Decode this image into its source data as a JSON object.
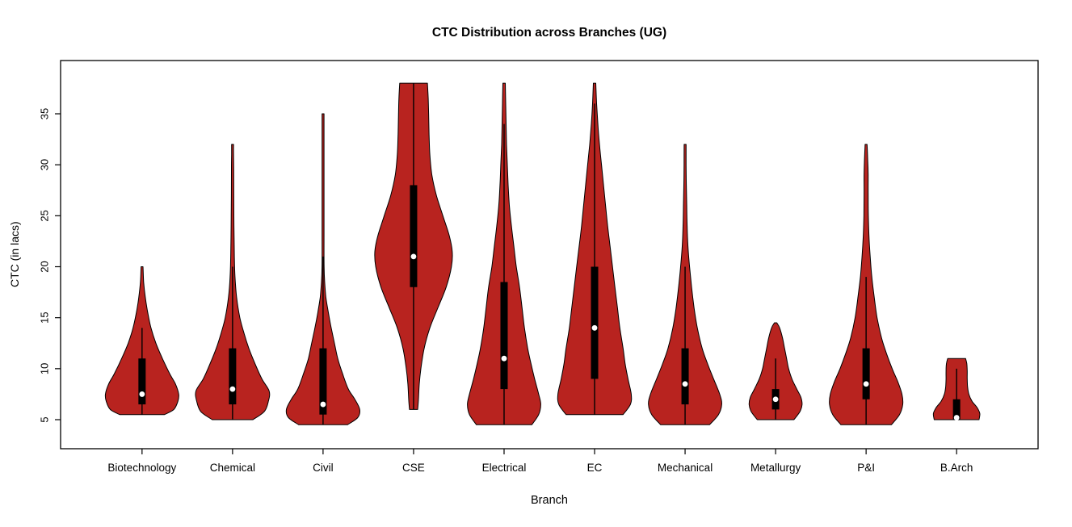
{
  "chart_data": {
    "type": "violin",
    "title": "CTC Distribution across Branches (UG)",
    "xlabel": "Branch",
    "ylabel": "CTC (in lacs)",
    "ylim": [
      2,
      40
    ],
    "yticks": [
      5,
      10,
      15,
      20,
      25,
      30,
      35
    ],
    "grid": false,
    "fill_color": "#B8231F",
    "outline_color": "#000000",
    "categories": [
      "Biotechnology",
      "Chemical",
      "Civil",
      "CSE",
      "Electrical",
      "EC",
      "Mechanical",
      "Metallurgy",
      "P&I",
      "B.Arch"
    ],
    "violins": [
      {
        "branch": "Biotechnology",
        "min": 5.5,
        "max": 20,
        "q1": 6.5,
        "q3": 11,
        "median": 7.5,
        "whisker_low": 5.5,
        "whisker_high": 14,
        "density": [
          [
            5.5,
            0.55
          ],
          [
            6.0,
            0.78
          ],
          [
            6.8,
            0.88
          ],
          [
            7.5,
            0.9
          ],
          [
            8.5,
            0.82
          ],
          [
            9.5,
            0.68
          ],
          [
            11.0,
            0.5
          ],
          [
            12.5,
            0.34
          ],
          [
            14.0,
            0.22
          ],
          [
            15.5,
            0.14
          ],
          [
            17.0,
            0.08
          ],
          [
            18.5,
            0.04
          ],
          [
            20.0,
            0.01
          ]
        ]
      },
      {
        "branch": "Chemical",
        "min": 5,
        "max": 32,
        "q1": 6.5,
        "q3": 12,
        "median": 8,
        "whisker_low": 5,
        "whisker_high": 20,
        "density": [
          [
            5.0,
            0.5
          ],
          [
            5.8,
            0.78
          ],
          [
            6.8,
            0.88
          ],
          [
            7.8,
            0.9
          ],
          [
            9.0,
            0.72
          ],
          [
            10.5,
            0.55
          ],
          [
            12.0,
            0.4
          ],
          [
            13.5,
            0.28
          ],
          [
            15.0,
            0.18
          ],
          [
            17.0,
            0.1
          ],
          [
            19.0,
            0.06
          ],
          [
            21.0,
            0.045
          ],
          [
            24.0,
            0.035
          ],
          [
            27.0,
            0.03
          ],
          [
            29.5,
            0.028
          ],
          [
            31.0,
            0.02
          ],
          [
            32.0,
            0.008
          ]
        ]
      },
      {
        "branch": "Civil",
        "min": 4.5,
        "max": 35,
        "q1": 5.5,
        "q3": 12,
        "median": 6.5,
        "whisker_low": 4.5,
        "whisker_high": 21,
        "density": [
          [
            4.5,
            0.6
          ],
          [
            5.2,
            0.85
          ],
          [
            6.0,
            0.9
          ],
          [
            7.0,
            0.78
          ],
          [
            8.0,
            0.62
          ],
          [
            9.5,
            0.48
          ],
          [
            11.0,
            0.36
          ],
          [
            12.5,
            0.28
          ],
          [
            14.0,
            0.2
          ],
          [
            15.5,
            0.13
          ],
          [
            17.0,
            0.07
          ],
          [
            18.5,
            0.04
          ],
          [
            20.0,
            0.025
          ],
          [
            23.0,
            0.018
          ],
          [
            26.0,
            0.015
          ],
          [
            29.0,
            0.015
          ],
          [
            32.0,
            0.012
          ],
          [
            35.0,
            0.006
          ]
        ]
      },
      {
        "branch": "CSE",
        "min": 6,
        "max": 38,
        "q1": 18,
        "q3": 28,
        "median": 21,
        "whisker_low": 6,
        "whisker_high": 38,
        "density": [
          [
            6.0,
            0.1
          ],
          [
            7.0,
            0.12
          ],
          [
            8.5,
            0.14
          ],
          [
            10.0,
            0.18
          ],
          [
            12.0,
            0.26
          ],
          [
            14.0,
            0.4
          ],
          [
            16.0,
            0.6
          ],
          [
            18.0,
            0.8
          ],
          [
            20.0,
            0.93
          ],
          [
            21.5,
            0.95
          ],
          [
            23.0,
            0.88
          ],
          [
            25.0,
            0.72
          ],
          [
            27.0,
            0.56
          ],
          [
            29.0,
            0.45
          ],
          [
            31.0,
            0.4
          ],
          [
            33.0,
            0.38
          ],
          [
            35.0,
            0.37
          ],
          [
            36.5,
            0.36
          ],
          [
            38.0,
            0.34
          ]
        ]
      },
      {
        "branch": "Electrical",
        "min": 4.5,
        "max": 38,
        "q1": 8,
        "q3": 18.5,
        "median": 11,
        "whisker_low": 4.5,
        "whisker_high": 34,
        "density": [
          [
            4.5,
            0.68
          ],
          [
            5.5,
            0.85
          ],
          [
            6.5,
            0.9
          ],
          [
            7.5,
            0.85
          ],
          [
            9.0,
            0.75
          ],
          [
            10.5,
            0.66
          ],
          [
            12.0,
            0.58
          ],
          [
            14.0,
            0.5
          ],
          [
            16.0,
            0.44
          ],
          [
            18.0,
            0.38
          ],
          [
            20.0,
            0.3
          ],
          [
            22.0,
            0.24
          ],
          [
            24.0,
            0.18
          ],
          [
            26.0,
            0.13
          ],
          [
            28.0,
            0.1
          ],
          [
            30.0,
            0.08
          ],
          [
            32.0,
            0.06
          ],
          [
            34.0,
            0.05
          ],
          [
            36.0,
            0.04
          ],
          [
            38.0,
            0.03
          ]
        ]
      },
      {
        "branch": "EC",
        "min": 5.5,
        "max": 38,
        "q1": 9,
        "q3": 20,
        "median": 14,
        "whisker_low": 5.5,
        "whisker_high": 36,
        "density": [
          [
            5.5,
            0.7
          ],
          [
            6.5,
            0.88
          ],
          [
            7.5,
            0.9
          ],
          [
            9.0,
            0.82
          ],
          [
            10.5,
            0.75
          ],
          [
            12.0,
            0.7
          ],
          [
            14.0,
            0.62
          ],
          [
            16.0,
            0.56
          ],
          [
            18.0,
            0.5
          ],
          [
            20.0,
            0.44
          ],
          [
            22.0,
            0.38
          ],
          [
            24.0,
            0.32
          ],
          [
            26.0,
            0.27
          ],
          [
            28.0,
            0.22
          ],
          [
            30.0,
            0.17
          ],
          [
            32.0,
            0.12
          ],
          [
            34.0,
            0.08
          ],
          [
            36.0,
            0.05
          ],
          [
            38.0,
            0.03
          ]
        ]
      },
      {
        "branch": "Mechanical",
        "min": 4.5,
        "max": 32,
        "q1": 6.5,
        "q3": 12,
        "median": 8.5,
        "whisker_low": 4.5,
        "whisker_high": 20,
        "density": [
          [
            4.5,
            0.6
          ],
          [
            5.5,
            0.82
          ],
          [
            6.5,
            0.9
          ],
          [
            7.5,
            0.85
          ],
          [
            9.0,
            0.7
          ],
          [
            10.5,
            0.55
          ],
          [
            12.0,
            0.42
          ],
          [
            14.0,
            0.3
          ],
          [
            16.0,
            0.22
          ],
          [
            18.0,
            0.16
          ],
          [
            20.0,
            0.11
          ],
          [
            22.0,
            0.07
          ],
          [
            24.0,
            0.05
          ],
          [
            26.0,
            0.04
          ],
          [
            28.0,
            0.03
          ],
          [
            30.0,
            0.025
          ],
          [
            32.0,
            0.01
          ]
        ]
      },
      {
        "branch": "Metallurgy",
        "min": 5,
        "max": 14.5,
        "q1": 6,
        "q3": 8,
        "median": 7,
        "whisker_low": 5,
        "whisker_high": 11,
        "density": [
          [
            5.0,
            0.45
          ],
          [
            5.8,
            0.6
          ],
          [
            6.5,
            0.65
          ],
          [
            7.2,
            0.62
          ],
          [
            8.0,
            0.52
          ],
          [
            9.0,
            0.4
          ],
          [
            10.0,
            0.32
          ],
          [
            11.0,
            0.27
          ],
          [
            12.0,
            0.22
          ],
          [
            13.0,
            0.17
          ],
          [
            14.0,
            0.1
          ],
          [
            14.5,
            0.03
          ]
        ]
      },
      {
        "branch": "P&I",
        "min": 4.5,
        "max": 32,
        "q1": 7,
        "q3": 12,
        "median": 8.5,
        "whisker_low": 4.5,
        "whisker_high": 19,
        "density": [
          [
            4.5,
            0.62
          ],
          [
            5.5,
            0.82
          ],
          [
            6.5,
            0.9
          ],
          [
            7.5,
            0.88
          ],
          [
            8.7,
            0.78
          ],
          [
            10.0,
            0.64
          ],
          [
            11.5,
            0.5
          ],
          [
            13.0,
            0.38
          ],
          [
            15.0,
            0.27
          ],
          [
            17.0,
            0.2
          ],
          [
            19.0,
            0.14
          ],
          [
            21.0,
            0.1
          ],
          [
            23.0,
            0.07
          ],
          [
            25.0,
            0.055
          ],
          [
            27.0,
            0.05
          ],
          [
            29.0,
            0.05
          ],
          [
            30.5,
            0.04
          ],
          [
            32.0,
            0.015
          ]
        ]
      },
      {
        "branch": "B.Arch",
        "min": 5,
        "max": 11,
        "q1": 5,
        "q3": 7,
        "median": 5.2,
        "whisker_low": 5,
        "whisker_high": 10,
        "density": [
          [
            5.0,
            0.55
          ],
          [
            5.6,
            0.57
          ],
          [
            6.2,
            0.5
          ],
          [
            6.8,
            0.38
          ],
          [
            7.5,
            0.3
          ],
          [
            8.2,
            0.27
          ],
          [
            9.0,
            0.26
          ],
          [
            9.8,
            0.26
          ],
          [
            10.5,
            0.25
          ],
          [
            11.0,
            0.22
          ]
        ]
      }
    ]
  }
}
